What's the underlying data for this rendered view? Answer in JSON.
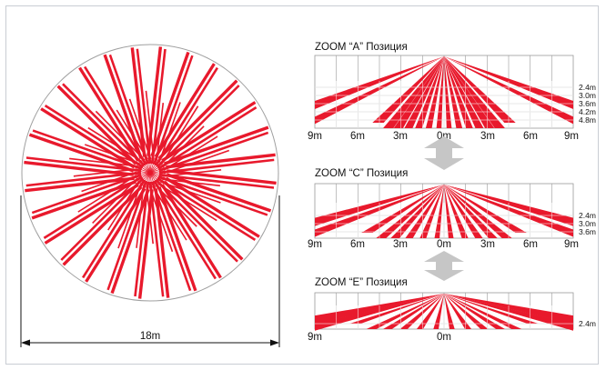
{
  "colors": {
    "beam": "#e8192c",
    "grid": "#9a9a9a",
    "arrow": "#c6c6c6",
    "text": "#111111"
  },
  "top_view": {
    "diameter_label": "18m"
  },
  "zoom_panels": [
    {
      "id": "A",
      "title": "ZOOM “A” Позиция",
      "x_labels": [
        "9m",
        "6m",
        "3m",
        "0m",
        "3m",
        "6m",
        "9m"
      ],
      "height_labels": [
        "2.4m",
        "3.0m",
        "3.6m",
        "4.2m",
        "4.8m"
      ]
    },
    {
      "id": "C",
      "title": "ZOOM “C” Позиция",
      "x_labels": [
        "9m",
        "6m",
        "3m",
        "0m",
        "3m",
        "6m",
        "9m"
      ],
      "height_labels": [
        "2.4m",
        "3.0m",
        "3.6m"
      ]
    },
    {
      "id": "E",
      "title": "ZOOM “E” Позиция",
      "x_labels": [
        "9m",
        "0m"
      ],
      "height_labels": [
        "2.4m"
      ]
    }
  ]
}
